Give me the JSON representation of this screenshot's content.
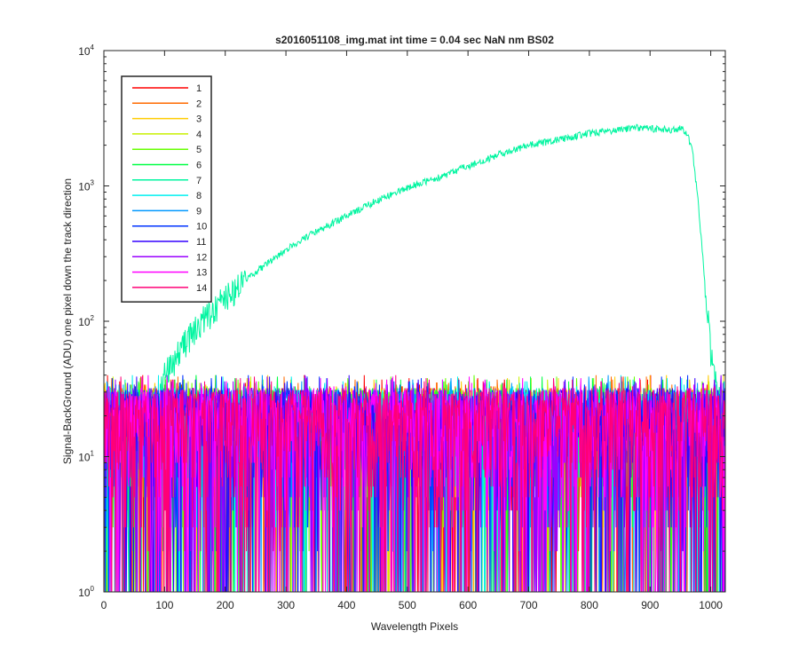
{
  "chart_data": {
    "type": "line",
    "title": "s2016051108_img.mat int time = 0.04 sec  NaN nm BS02",
    "xlabel": "Wavelength Pixels",
    "ylabel": "Signal-BackGround (ADU) one pixel down the track direction",
    "xlim": [
      0,
      1024
    ],
    "ylim": [
      1,
      10000
    ],
    "y_scale": "log",
    "x_ticks": [
      "0",
      "100",
      "200",
      "300",
      "400",
      "500",
      "600",
      "700",
      "800",
      "900",
      "1000"
    ],
    "x_tick_values": [
      0,
      100,
      200,
      300,
      400,
      500,
      600,
      700,
      800,
      900,
      1000
    ],
    "y_ticks": [
      {
        "base": "10",
        "exp": "0",
        "value": 1
      },
      {
        "base": "10",
        "exp": "1",
        "value": 10
      },
      {
        "base": "10",
        "exp": "2",
        "value": 100
      },
      {
        "base": "10",
        "exp": "3",
        "value": 1000
      },
      {
        "base": "10",
        "exp": "4",
        "value": 10000
      }
    ],
    "grid": false,
    "legend_position": "top-left",
    "noise_range": [
      1,
      40
    ],
    "series": [
      {
        "name": "1",
        "color": "#ff0000",
        "profile": "noise"
      },
      {
        "name": "2",
        "color": "#ff6a00",
        "profile": "noise"
      },
      {
        "name": "3",
        "color": "#ffcc00",
        "profile": "noise"
      },
      {
        "name": "4",
        "color": "#c8f000",
        "profile": "noise"
      },
      {
        "name": "5",
        "color": "#66ff00",
        "profile": "noise"
      },
      {
        "name": "6",
        "color": "#00ff44",
        "profile": "noise"
      },
      {
        "name": "7",
        "color": "#00f5a0",
        "profile": "signal",
        "x": [
          80,
          100,
          150,
          200,
          250,
          300,
          350,
          400,
          450,
          500,
          550,
          600,
          650,
          700,
          750,
          800,
          850,
          880,
          900,
          930,
          950,
          960,
          970,
          980,
          990,
          1000,
          1010,
          1020,
          1024
        ],
        "y": [
          18,
          40,
          90,
          150,
          230,
          340,
          460,
          600,
          780,
          970,
          1150,
          1400,
          1700,
          2000,
          2200,
          2450,
          2600,
          2700,
          2650,
          2600,
          2650,
          2500,
          1800,
          700,
          200,
          60,
          30,
          22,
          20
        ]
      },
      {
        "name": "8",
        "color": "#00f0f0",
        "profile": "noise"
      },
      {
        "name": "9",
        "color": "#0099ff",
        "profile": "noise"
      },
      {
        "name": "10",
        "color": "#0033ff",
        "profile": "noise"
      },
      {
        "name": "11",
        "color": "#3300ff",
        "profile": "noise"
      },
      {
        "name": "12",
        "color": "#9900ff",
        "profile": "noise"
      },
      {
        "name": "13",
        "color": "#ff00ff",
        "profile": "noise"
      },
      {
        "name": "14",
        "color": "#ff0077",
        "profile": "noise"
      }
    ]
  }
}
